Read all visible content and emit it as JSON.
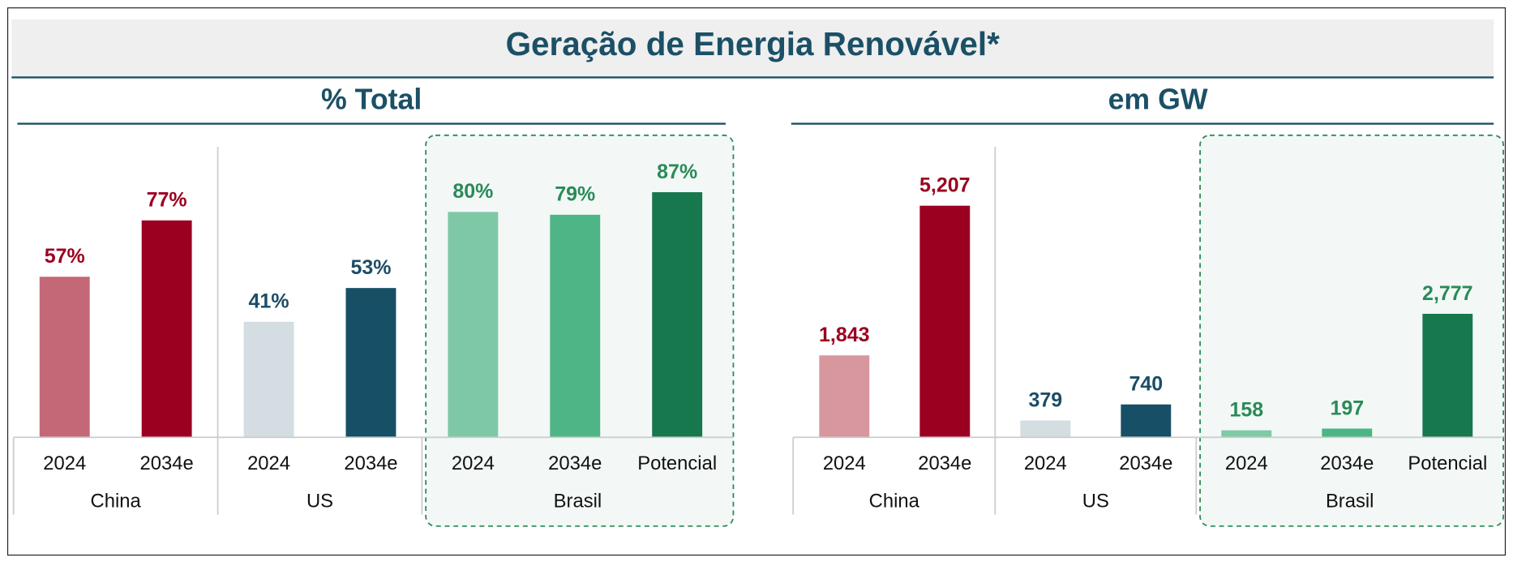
{
  "title": "Geração de Energia Renovável*",
  "chart_data": [
    {
      "type": "bar",
      "title": "% Total",
      "series": [
        {
          "name": "China",
          "categories": [
            "2024",
            "2034e"
          ],
          "values": [
            57,
            77
          ],
          "value_labels": [
            "57%",
            "77%"
          ],
          "colors": [
            "#c46877",
            "#9b0020"
          ],
          "label_color": "#9b0020"
        },
        {
          "name": "US",
          "categories": [
            "2024",
            "2034e"
          ],
          "values": [
            41,
            53
          ],
          "value_labels": [
            "41%",
            "53%"
          ],
          "colors": [
            "#d3dde2",
            "#174f66"
          ],
          "label_color": "#1b4d66"
        },
        {
          "name": "Brasil",
          "categories": [
            "2024",
            "2034e",
            "Potencial"
          ],
          "values": [
            80,
            79,
            87
          ],
          "value_labels": [
            "80%",
            "79%",
            "87%"
          ],
          "colors": [
            "#7ec8a6",
            "#4db586",
            "#17784d"
          ],
          "label_color": "#2a8a58",
          "highlighted": true
        }
      ]
    },
    {
      "type": "bar",
      "title": "em GW",
      "series": [
        {
          "name": "China",
          "categories": [
            "2024",
            "2034e"
          ],
          "values": [
            1843,
            5207
          ],
          "value_labels": [
            "1,843",
            "5,207"
          ],
          "colors": [
            "#d8979f",
            "#9b0020"
          ],
          "label_color": "#9b0020"
        },
        {
          "name": "US",
          "categories": [
            "2024",
            "2034e"
          ],
          "values": [
            379,
            740
          ],
          "value_labels": [
            "379",
            "740"
          ],
          "colors": [
            "#d3dde2",
            "#174f66"
          ],
          "label_color": "#1b4d66"
        },
        {
          "name": "Brasil",
          "categories": [
            "2024",
            "2034e",
            "Potencial"
          ],
          "values": [
            158,
            197,
            2777
          ],
          "value_labels": [
            "158",
            "197",
            "2,777"
          ],
          "colors": [
            "#7dcaa6",
            "#4ab585",
            "#17784d"
          ],
          "label_color": "#2a8a58",
          "highlighted": true
        }
      ]
    }
  ]
}
